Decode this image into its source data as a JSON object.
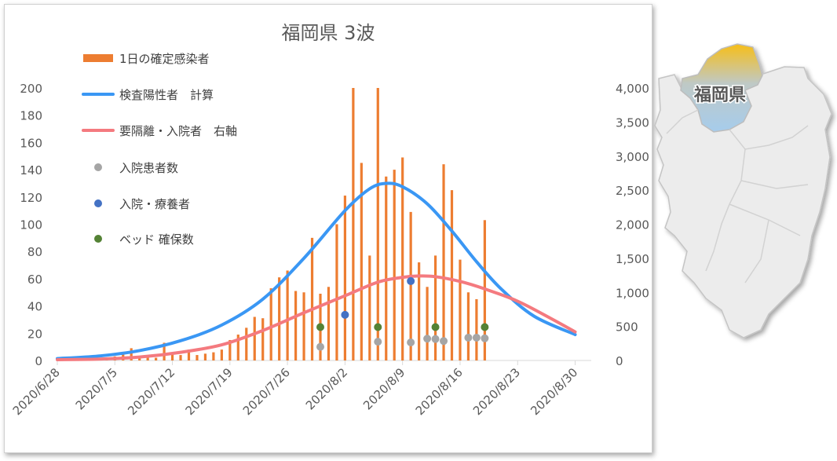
{
  "chart_data": {
    "type": "bar",
    "title": "福岡県 3波",
    "x_type": "date",
    "x_ticks": [
      "2020/6/28",
      "2020/7/5",
      "2020/7/12",
      "2020/7/19",
      "2020/7/26",
      "2020/8/2",
      "2020/8/9",
      "2020/8/16",
      "2020/8/23",
      "2020/8/30"
    ],
    "x_range": [
      "2020/6/28",
      "2020/8/31"
    ],
    "ylim_left": [
      0,
      200
    ],
    "y_ticks_left": [
      "0",
      "20",
      "40",
      "60",
      "80",
      "100",
      "120",
      "140",
      "160",
      "180",
      "200"
    ],
    "ylim_right": [
      0,
      4000
    ],
    "y_ticks_right": [
      "0",
      "500",
      "1,000",
      "1,500",
      "2,000",
      "2,500",
      "3,000",
      "3,500",
      "4,000"
    ],
    "grid": false,
    "legend_position": "top-left",
    "series": [
      {
        "name": "1日の確定感染者",
        "kind": "bar",
        "axis": "left",
        "color": "#ED7D31",
        "x": [
          "2020/7/1",
          "2020/7/2",
          "2020/7/3",
          "2020/7/4",
          "2020/7/5",
          "2020/7/6",
          "2020/7/7",
          "2020/7/8",
          "2020/7/9",
          "2020/7/10",
          "2020/7/11",
          "2020/7/12",
          "2020/7/13",
          "2020/7/14",
          "2020/7/15",
          "2020/7/16",
          "2020/7/17",
          "2020/7/18",
          "2020/7/19",
          "2020/7/20",
          "2020/7/21",
          "2020/7/22",
          "2020/7/23",
          "2020/7/24",
          "2020/7/25",
          "2020/7/26",
          "2020/7/27",
          "2020/7/28",
          "2020/7/29",
          "2020/7/30",
          "2020/7/31",
          "2020/8/1",
          "2020/8/2",
          "2020/8/3",
          "2020/8/4",
          "2020/8/5",
          "2020/8/6",
          "2020/8/7",
          "2020/8/8",
          "2020/8/9",
          "2020/8/10",
          "2020/8/11",
          "2020/8/12",
          "2020/8/13",
          "2020/8/14",
          "2020/8/15",
          "2020/8/16",
          "2020/8/17",
          "2020/8/18",
          "2020/8/19"
        ],
        "values": [
          2,
          2,
          2,
          2,
          3,
          6,
          9,
          2,
          3,
          2,
          13,
          5,
          4,
          8,
          4,
          5,
          6,
          8,
          15,
          19,
          24,
          32,
          31,
          53,
          61,
          66,
          51,
          50,
          90,
          49,
          54,
          100,
          121,
          203,
          145,
          77,
          201,
          135,
          140,
          149,
          109,
          72,
          54,
          77,
          144,
          125,
          74,
          50,
          45,
          103
        ]
      },
      {
        "name": "検査陽性者　計算",
        "kind": "line",
        "axis": "right",
        "color": "#3A97F4",
        "x": [
          "2020/6/28",
          "2020/7/3",
          "2020/7/8",
          "2020/7/13",
          "2020/7/18",
          "2020/7/23",
          "2020/7/28",
          "2020/8/2",
          "2020/8/5",
          "2020/8/7",
          "2020/8/9",
          "2020/8/12",
          "2020/8/15",
          "2020/8/18",
          "2020/8/21",
          "2020/8/25",
          "2020/8/30"
        ],
        "values": [
          28,
          65,
          145,
          290,
          520,
          900,
          1500,
          2200,
          2520,
          2600,
          2550,
          2300,
          1900,
          1450,
          1050,
          650,
          380
        ]
      },
      {
        "name": "要隔離・入院者　右軸",
        "kind": "line",
        "axis": "right",
        "color": "#F47A7F",
        "x": [
          "2020/6/28",
          "2020/7/3",
          "2020/7/8",
          "2020/7/13",
          "2020/7/18",
          "2020/7/23",
          "2020/7/28",
          "2020/8/2",
          "2020/8/6",
          "2020/8/9",
          "2020/8/11",
          "2020/8/13",
          "2020/8/16",
          "2020/8/19",
          "2020/8/23",
          "2020/8/27",
          "2020/8/30"
        ],
        "values": [
          12,
          20,
          50,
          120,
          230,
          440,
          700,
          950,
          1150,
          1220,
          1240,
          1230,
          1160,
          1050,
          870,
          620,
          420
        ]
      },
      {
        "name": "入院患者数",
        "kind": "scatter",
        "axis": "right",
        "color": "#A5A5A5",
        "x": [
          "2020/7/30",
          "2020/8/6",
          "2020/8/10",
          "2020/8/12",
          "2020/8/13",
          "2020/8/14",
          "2020/8/17",
          "2020/8/18",
          "2020/8/19"
        ],
        "values": [
          200,
          275,
          265,
          320,
          315,
          285,
          335,
          335,
          325
        ]
      },
      {
        "name": "入院・療養者",
        "kind": "scatter",
        "axis": "right",
        "color": "#4472C4",
        "x": [
          "2020/8/2",
          "2020/8/10"
        ],
        "values": [
          670,
          1165
        ]
      },
      {
        "name": "ベッド 確保数",
        "kind": "scatter",
        "axis": "right",
        "color": "#548235",
        "x": [
          "2020/7/30",
          "2020/8/6",
          "2020/8/13",
          "2020/8/19"
        ],
        "values": [
          490,
          490,
          490,
          490
        ]
      }
    ]
  },
  "map": {
    "label": "福岡県",
    "colors": {
      "prefecture_north": "#F7BE17",
      "prefecture_mid": "#BFC9C6",
      "prefecture_south": "#A6CCEC",
      "land": "#ECECEC",
      "outline": "#C4C4C4"
    }
  }
}
